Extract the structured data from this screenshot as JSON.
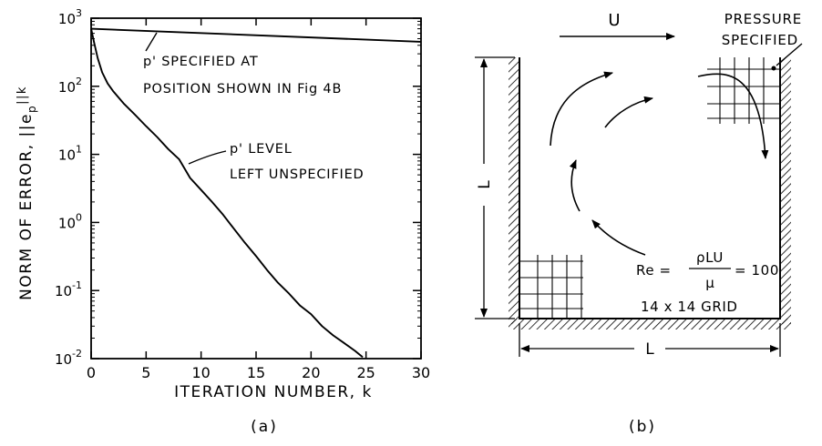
{
  "chart_data": [
    {
      "type": "line",
      "panel_label": "(a)",
      "xlabel": "ITERATION NUMBER, k",
      "ylabel": "NORM OF ERROR, ||e",
      "ylabel_sub": "p",
      "ylabel_sup": "||k",
      "xlim": [
        0,
        30
      ],
      "ylim": [
        0.01,
        1000
      ],
      "yscale": "log",
      "x_ticks": [
        0,
        5,
        10,
        15,
        20,
        25,
        30
      ],
      "x_tick_labels": [
        "0",
        "5",
        "10",
        "15",
        "20",
        "25",
        "30"
      ],
      "y_ticks": [
        {
          "value": 1000,
          "base": "10",
          "exp": "3"
        },
        {
          "value": 100,
          "base": "10",
          "exp": "2"
        },
        {
          "value": 10,
          "base": "10",
          "exp": "1"
        },
        {
          "value": 1,
          "base": "10",
          "exp": "0"
        },
        {
          "value": 0.1,
          "base": "10",
          "exp": "-1"
        },
        {
          "value": 0.01,
          "base": "10",
          "exp": "-2"
        }
      ],
      "grid": false,
      "series": [
        {
          "x": [
            0,
            30
          ],
          "y": [
            700,
            450
          ]
        },
        {
          "x": [
            0,
            0.3,
            0.6,
            1,
            1.5,
            2,
            3,
            4,
            5,
            6,
            7,
            8,
            9,
            10,
            11,
            12,
            13,
            14,
            15,
            16,
            17,
            18,
            19,
            20,
            21,
            22,
            23,
            24,
            24.7
          ],
          "y": [
            700,
            420,
            260,
            160,
            110,
            85,
            55,
            38,
            26,
            18,
            12,
            8.5,
            4.5,
            3.0,
            2.0,
            1.3,
            0.8,
            0.5,
            0.32,
            0.2,
            0.13,
            0.09,
            0.06,
            0.045,
            0.03,
            0.022,
            0.017,
            0.013,
            0.0105
          ]
        }
      ],
      "annotations": [
        {
          "lines": [
            "p' SPECIFIED AT",
            "POSITION SHOWN IN Fig 4B"
          ]
        },
        {
          "lines": [
            "p' LEVEL",
            "LEFT UNSPECIFIED"
          ]
        }
      ]
    }
  ],
  "diagram": {
    "panel_label": "(b)",
    "velocity_label": "U",
    "pressure_label_1": "PRESSURE",
    "pressure_label_2": "SPECIFIED",
    "side_label": "L",
    "bottom_label": "L",
    "re_prefix": "Re =",
    "re_numerator": "ρLU",
    "re_denominator": "μ",
    "re_suffix": "= 100",
    "grid_label": "14 x 14 GRID"
  }
}
